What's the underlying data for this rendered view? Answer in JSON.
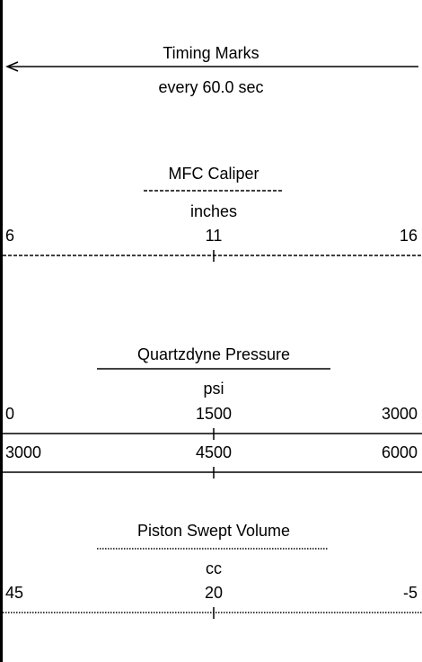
{
  "timing": {
    "title": "Timing Marks",
    "subtitle": "every 60.0 sec"
  },
  "tracks": [
    {
      "title": "MFC Caliper",
      "unit": "inches",
      "scales": [
        [
          6,
          11,
          16
        ]
      ]
    },
    {
      "title": "Quartzdyne Pressure",
      "unit": "psi",
      "scales": [
        [
          0,
          1500,
          3000
        ],
        [
          3000,
          4500,
          6000
        ]
      ]
    },
    {
      "title": "Piston Swept Volume",
      "unit": "cc",
      "scales": [
        [
          45,
          20,
          -5
        ]
      ]
    }
  ]
}
